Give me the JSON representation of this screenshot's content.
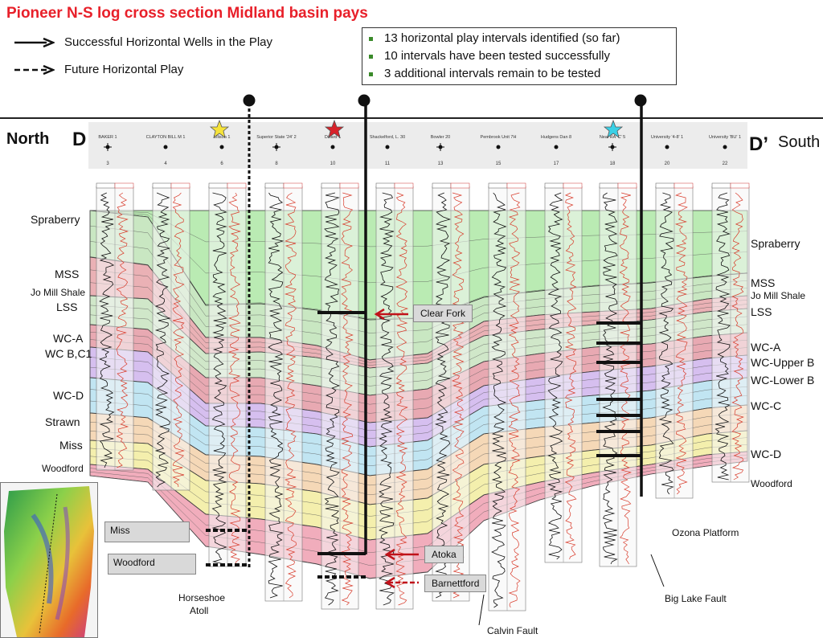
{
  "title": "Pioneer N-S log cross section Midland basin pays",
  "legend": {
    "solid": "Successful Horizontal Wells in the Play",
    "dashed": "Future Horizontal Play"
  },
  "bullets": [
    "13 horizontal play intervals identified (so far)",
    "10 intervals have been tested successfully",
    "3 additional intervals remain to be tested"
  ],
  "section": {
    "north_label": "North",
    "start_letter": "D",
    "end_letter": "D’",
    "south_label": "South"
  },
  "wells": [
    {
      "name": "BAKER 1",
      "num": "3"
    },
    {
      "name": "CLAYTON BILL M 1",
      "num": "4"
    },
    {
      "name": "Ellison 1",
      "num": "6"
    },
    {
      "name": "Superior State '24' 2",
      "num": "8"
    },
    {
      "name": "Dillard 1",
      "num": "10"
    },
    {
      "name": "Shackelford, L. 30",
      "num": "11"
    },
    {
      "name": "Bowler 20",
      "num": "13"
    },
    {
      "name": "Pembrook Unit 7H",
      "num": "15"
    },
    {
      "name": "Hudgens Dan 8",
      "num": "17"
    },
    {
      "name": "Neal RA 'C' 5",
      "num": "18"
    },
    {
      "name": "University '4-8' 1",
      "num": "20"
    },
    {
      "name": "University 'BU' 1",
      "num": "22"
    }
  ],
  "left_formations": [
    "Spraberry",
    "MSS",
    "Jo Mill Shale",
    "LSS",
    "WC-A",
    "WC B,C1",
    "WC-D",
    "Strawn",
    "Miss",
    "Woodford"
  ],
  "right_formations": [
    "Spraberry",
    "MSS",
    "Jo Mill Shale",
    "LSS",
    "WC-A",
    "WC-Upper B",
    "WC-Lower B",
    "WC-C",
    "WC-D",
    "Woodford"
  ],
  "callouts": {
    "clear_fork": "Clear Fork",
    "atoka": "Atoka",
    "barnettford": "Barnettford",
    "miss": "Miss",
    "woodford": "Woodford"
  },
  "annotations": {
    "horseshoe": "Horseshoe",
    "atoll": "Atoll",
    "calvin_fault": "Calvin Fault",
    "big_lake_fault": "Big Lake Fault",
    "ozona_platform": "Ozona Platform"
  },
  "colors": {
    "title_red": "#e8202a",
    "spraberry_green": "#9ee29a",
    "wolfcamp_green": "#b7d8b0",
    "wolfcamp_red": "#e8a3a3",
    "purple": "#c9a7e8",
    "cyan": "#a7dcef",
    "peach": "#f5cfa6",
    "yellow": "#f5ee9e"
  }
}
